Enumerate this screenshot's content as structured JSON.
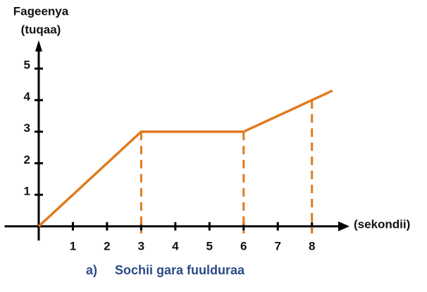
{
  "chart_data": {
    "type": "line",
    "y_label": [
      "Fageenya",
      "(tuqaa)"
    ],
    "x_label": "(sekondii)",
    "caption": {
      "letter": "a)",
      "text": "Sochii gara fuulduraa"
    },
    "x": [
      0,
      3,
      6,
      8.6
    ],
    "series": [
      {
        "color": "#e07a1f",
        "values": [
          0,
          3,
          3,
          4.3
        ]
      }
    ],
    "guides_x": [
      3,
      6,
      8
    ],
    "xlim": [
      -1,
      9.1
    ],
    "ylim": [
      -0.45,
      5.9
    ],
    "xticks": [
      1,
      2,
      3,
      4,
      5,
      6,
      7,
      8
    ],
    "yticks": [
      1,
      2,
      3,
      4,
      5
    ]
  }
}
